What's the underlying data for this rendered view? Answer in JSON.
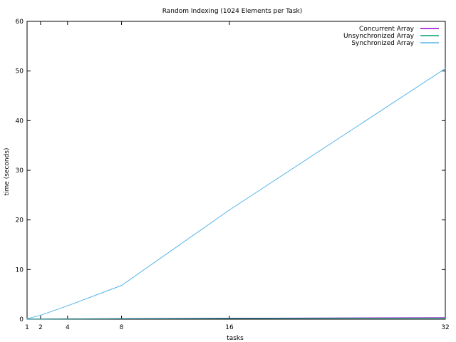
{
  "chart_data": {
    "type": "line",
    "title": "Random Indexing (1024 Elements per Task)",
    "xlabel": "tasks",
    "ylabel": "time (seconds)",
    "xlim": [
      1,
      32
    ],
    "ylim": [
      0,
      60
    ],
    "xticks": [
      1,
      2,
      4,
      8,
      16,
      32
    ],
    "yticks": [
      0,
      10,
      20,
      30,
      40,
      50,
      60
    ],
    "x": [
      1,
      2,
      4,
      8,
      16,
      32
    ],
    "legend_position": "top-right",
    "grid": false,
    "series": [
      {
        "name": "Concurrent Array",
        "color": "#9400d3",
        "values": [
          0.02,
          0.04,
          0.07,
          0.12,
          0.2,
          0.3
        ]
      },
      {
        "name": "Unsynchronized Array",
        "color": "#009e73",
        "values": [
          0.01,
          0.02,
          0.04,
          0.08,
          0.14,
          0.22
        ]
      },
      {
        "name": "Synchronized Array",
        "color": "#56b4e9",
        "values": [
          0.1,
          0.8,
          2.7,
          6.8,
          22.0,
          50.5
        ]
      }
    ]
  }
}
